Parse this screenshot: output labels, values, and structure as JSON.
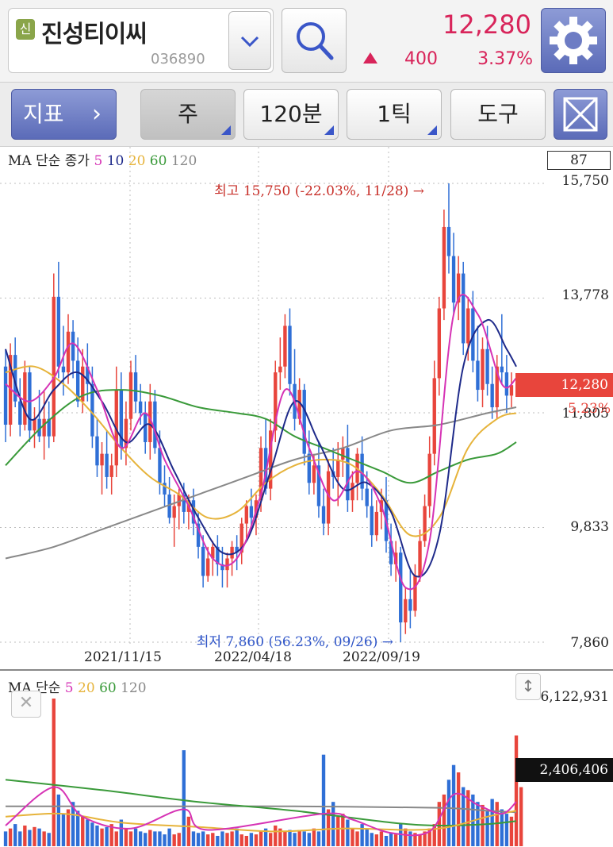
{
  "header": {
    "badge": "신",
    "stock_name": "진성티이씨",
    "stock_code": "036890",
    "price": "12,280",
    "change_amount": "400",
    "change_percent": "3.37%",
    "accent_color": "#d8245a"
  },
  "toolbar": {
    "indicator_label": "지표",
    "indicator_chevron": "›",
    "period_label": "주",
    "interval_label": "120분",
    "tick_label": "1틱",
    "tools_label": "도구"
  },
  "chart_data": [
    {
      "type": "candlestick",
      "legend_prefix": "MA 단순 종가",
      "ma_periods": [
        "5",
        "10",
        "20",
        "60",
        "120"
      ],
      "ma_colors": [
        "#d633b5",
        "#1e2a8a",
        "#e6b33a",
        "#3a9a3a",
        "#888888"
      ],
      "y_ticks": [
        "15,750",
        "13,778",
        "11,805",
        "9,833",
        "7,860"
      ],
      "ylim": [
        7860,
        15750
      ],
      "x_ticks": [
        "2021/11/15",
        "2022/04/18",
        "2022/09/19"
      ],
      "counter": "87",
      "current_price": "12,280",
      "current_change_pct": "5.23%",
      "high_annotation": "최고 15,750 (-22.03%, 11/28) →",
      "low_annotation": "최저 7,860 (56.23%, 09/26) →",
      "up_color": "#e8453c",
      "down_color": "#2f6fd6",
      "candles": [
        [
          12600,
          12900,
          11300,
          11600
        ],
        [
          11600,
          13000,
          11400,
          12800
        ],
        [
          12800,
          13100,
          11900,
          12000
        ],
        [
          12000,
          12400,
          11400,
          11600
        ],
        [
          11600,
          12700,
          11500,
          12500
        ],
        [
          12500,
          12600,
          11300,
          11500
        ],
        [
          11500,
          11900,
          11200,
          11700
        ],
        [
          11700,
          12200,
          11300,
          11400
        ],
        [
          11400,
          12200,
          11000,
          11700
        ],
        [
          11700,
          12000,
          11200,
          11400
        ],
        [
          11400,
          14200,
          11300,
          13800
        ],
        [
          13800,
          14400,
          12400,
          12600
        ],
        [
          12600,
          13300,
          12100,
          12500
        ],
        [
          12500,
          13500,
          12300,
          13200
        ],
        [
          13200,
          13400,
          12400,
          12700
        ],
        [
          12700,
          13100,
          11900,
          12000
        ],
        [
          12000,
          12900,
          11800,
          12600
        ],
        [
          12600,
          13000,
          12000,
          12300
        ],
        [
          12300,
          12600,
          11200,
          11400
        ],
        [
          11400,
          11700,
          10700,
          10900
        ],
        [
          10900,
          11300,
          10400,
          11100
        ],
        [
          11100,
          11500,
          10500,
          10700
        ],
        [
          10700,
          11100,
          10400,
          10900
        ],
        [
          10900,
          12600,
          10700,
          12200
        ],
        [
          12200,
          12500,
          11000,
          11200
        ],
        [
          11200,
          12000,
          10900,
          11700
        ],
        [
          11700,
          12700,
          11500,
          12500
        ],
        [
          12500,
          12800,
          11800,
          12000
        ],
        [
          12000,
          12300,
          11600,
          11800
        ],
        [
          11800,
          12000,
          11100,
          11300
        ],
        [
          11300,
          12300,
          11000,
          12000
        ],
        [
          12000,
          12200,
          11100,
          11200
        ],
        [
          11200,
          11500,
          10400,
          10600
        ],
        [
          10600,
          10900,
          10200,
          10400
        ],
        [
          10400,
          10700,
          9900,
          10000
        ],
        [
          10000,
          10400,
          9500,
          10200
        ],
        [
          10200,
          10500,
          9800,
          10400
        ],
        [
          10400,
          10600,
          9900,
          10100
        ],
        [
          10100,
          10400,
          9800,
          10300
        ],
        [
          10300,
          10500,
          9700,
          9900
        ],
        [
          9900,
          10100,
          9300,
          9500
        ],
        [
          9500,
          9700,
          8800,
          9000
        ],
        [
          9000,
          9500,
          8900,
          9300
        ],
        [
          9300,
          9600,
          9000,
          9500
        ],
        [
          9500,
          9700,
          9000,
          9200
        ],
        [
          9200,
          9500,
          8800,
          9100
        ],
        [
          9100,
          9400,
          8800,
          9300
        ],
        [
          9300,
          9600,
          9000,
          9500
        ],
        [
          9500,
          9700,
          9100,
          9400
        ],
        [
          9400,
          10000,
          9200,
          9900
        ],
        [
          9900,
          10300,
          9600,
          10200
        ],
        [
          10200,
          10500,
          9800,
          10000
        ],
        [
          10000,
          10400,
          9700,
          10300
        ],
        [
          10300,
          11400,
          10100,
          11200
        ],
        [
          11200,
          11700,
          10400,
          10500
        ],
        [
          10500,
          11700,
          10300,
          11500
        ],
        [
          11500,
          12700,
          11300,
          12500
        ],
        [
          12500,
          13100,
          12200,
          12600
        ],
        [
          12600,
          13500,
          12400,
          13300
        ],
        [
          13300,
          13600,
          12100,
          12300
        ],
        [
          12300,
          12900,
          11500,
          11700
        ],
        [
          11700,
          12400,
          11600,
          12200
        ],
        [
          12200,
          12300,
          10900,
          11100
        ],
        [
          11100,
          11500,
          10400,
          10600
        ],
        [
          10600,
          11100,
          10400,
          10900
        ],
        [
          10900,
          11300,
          10000,
          10200
        ],
        [
          10200,
          10500,
          9700,
          9900
        ],
        [
          9900,
          11000,
          9700,
          10800
        ],
        [
          10800,
          11200,
          10500,
          10700
        ],
        [
          10700,
          11300,
          10200,
          11000
        ],
        [
          11000,
          11400,
          10700,
          11200
        ],
        [
          11200,
          11600,
          10100,
          10300
        ],
        [
          10300,
          10800,
          10100,
          10600
        ],
        [
          10600,
          11200,
          10300,
          11100
        ],
        [
          11100,
          11400,
          10300,
          10500
        ],
        [
          10500,
          10800,
          10000,
          10200
        ],
        [
          10200,
          10500,
          9500,
          9700
        ],
        [
          9700,
          10300,
          9600,
          10100
        ],
        [
          10100,
          10500,
          9800,
          10300
        ],
        [
          10300,
          10700,
          9400,
          9600
        ],
        [
          9600,
          9900,
          9000,
          9200
        ],
        [
          9200,
          9600,
          8900,
          9400
        ],
        [
          9400,
          9500,
          7860,
          8200
        ],
        [
          8200,
          8800,
          8000,
          8600
        ],
        [
          8600,
          9100,
          8100,
          8400
        ],
        [
          8400,
          9200,
          8300,
          9000
        ],
        [
          9000,
          9800,
          8900,
          9600
        ],
        [
          9600,
          10400,
          9500,
          10200
        ],
        [
          10200,
          11400,
          10000,
          11100
        ],
        [
          11100,
          12700,
          10900,
          12400
        ],
        [
          12400,
          13800,
          12100,
          13600
        ],
        [
          13600,
          15300,
          13400,
          15000
        ],
        [
          15000,
          15750,
          14200,
          14500
        ],
        [
          14500,
          14900,
          13500,
          13700
        ],
        [
          13700,
          14500,
          13400,
          14200
        ],
        [
          14200,
          14400,
          12800,
          13000
        ],
        [
          13000,
          13800,
          12700,
          13600
        ],
        [
          13600,
          13900,
          12500,
          12700
        ],
        [
          12700,
          13300,
          12000,
          12200
        ],
        [
          12200,
          13100,
          11900,
          12900
        ],
        [
          12900,
          13300,
          12100,
          12300
        ],
        [
          12300,
          12600,
          11700,
          11900
        ],
        [
          11900,
          12800,
          11700,
          12600
        ],
        [
          12600,
          13500,
          12300,
          12500
        ],
        [
          12500,
          12800,
          11800,
          12100
        ],
        [
          12100,
          12500,
          11900,
          12280
        ]
      ],
      "ma5": [
        [
          0,
          12300
        ],
        [
          5,
          12000
        ],
        [
          10,
          12400
        ],
        [
          14,
          13000
        ],
        [
          19,
          12200
        ],
        [
          24,
          11200
        ],
        [
          29,
          11800
        ],
        [
          33,
          11000
        ],
        [
          38,
          10200
        ],
        [
          43,
          9300
        ],
        [
          48,
          9300
        ],
        [
          53,
          10400
        ],
        [
          58,
          12200
        ],
        [
          63,
          11200
        ],
        [
          68,
          10300
        ],
        [
          73,
          10800
        ],
        [
          78,
          10200
        ],
        [
          83,
          8800
        ],
        [
          88,
          9600
        ],
        [
          93,
          13500
        ],
        [
          98,
          13500
        ],
        [
          103,
          12300
        ],
        [
          106,
          12400
        ]
      ],
      "ma10": [
        [
          0,
          12900
        ],
        [
          5,
          11700
        ],
        [
          10,
          12200
        ],
        [
          15,
          12500
        ],
        [
          20,
          12000
        ],
        [
          25,
          11300
        ],
        [
          30,
          11600
        ],
        [
          35,
          10800
        ],
        [
          40,
          10000
        ],
        [
          45,
          9400
        ],
        [
          50,
          9600
        ],
        [
          55,
          10800
        ],
        [
          60,
          12000
        ],
        [
          65,
          11300
        ],
        [
          70,
          10500
        ],
        [
          75,
          10600
        ],
        [
          80,
          10100
        ],
        [
          85,
          9000
        ],
        [
          90,
          9700
        ],
        [
          95,
          12600
        ],
        [
          100,
          13400
        ],
        [
          104,
          12900
        ],
        [
          106,
          12600
        ]
      ],
      "ma20": [
        [
          0,
          12500
        ],
        [
          6,
          12600
        ],
        [
          12,
          12300
        ],
        [
          18,
          11800
        ],
        [
          24,
          11200
        ],
        [
          30,
          10700
        ],
        [
          36,
          10400
        ],
        [
          42,
          10000
        ],
        [
          48,
          10100
        ],
        [
          54,
          10600
        ],
        [
          60,
          10900
        ],
        [
          66,
          11000
        ],
        [
          72,
          10900
        ],
        [
          78,
          10400
        ],
        [
          84,
          9700
        ],
        [
          90,
          10000
        ],
        [
          96,
          11200
        ],
        [
          102,
          11700
        ],
        [
          106,
          11800
        ]
      ],
      "ma60": [
        [
          0,
          10900
        ],
        [
          8,
          11600
        ],
        [
          16,
          12100
        ],
        [
          24,
          12200
        ],
        [
          32,
          12100
        ],
        [
          40,
          11900
        ],
        [
          48,
          11800
        ],
        [
          54,
          11700
        ],
        [
          60,
          11400
        ],
        [
          66,
          11200
        ],
        [
          72,
          11000
        ],
        [
          78,
          10800
        ],
        [
          84,
          10600
        ],
        [
          90,
          10800
        ],
        [
          96,
          11000
        ],
        [
          102,
          11100
        ],
        [
          106,
          11300
        ]
      ],
      "ma120": [
        [
          0,
          9300
        ],
        [
          10,
          9500
        ],
        [
          20,
          9800
        ],
        [
          30,
          10100
        ],
        [
          40,
          10400
        ],
        [
          50,
          10700
        ],
        [
          60,
          11000
        ],
        [
          70,
          11200
        ],
        [
          80,
          11500
        ],
        [
          90,
          11600
        ],
        [
          100,
          11800
        ],
        [
          106,
          11900
        ]
      ]
    },
    {
      "type": "bar",
      "legend_prefix": "MA 단순",
      "ma_periods": [
        "5",
        "20",
        "60",
        "120"
      ],
      "ma_colors": [
        "#d633b5",
        "#e6b33a",
        "#3a9a3a",
        "#888888"
      ],
      "y_ticks": [
        "6,122,931"
      ],
      "current_volume": "2,406,406",
      "ylim": [
        0,
        6122931
      ],
      "volume_scale": 6122931,
      "volumes": [
        0.1,
        0.12,
        0.15,
        0.1,
        0.14,
        0.11,
        0.13,
        0.12,
        0.1,
        0.09,
        1.0,
        0.35,
        0.22,
        0.25,
        0.3,
        0.24,
        0.2,
        0.18,
        0.16,
        0.14,
        0.12,
        0.13,
        0.15,
        0.1,
        0.18,
        0.12,
        0.1,
        0.12,
        0.1,
        0.09,
        0.11,
        0.1,
        0.1,
        0.08,
        0.12,
        0.08,
        0.09,
        0.65,
        0.2,
        0.1,
        0.09,
        0.1,
        0.08,
        0.09,
        0.07,
        0.1,
        0.09,
        0.1,
        0.12,
        0.08,
        0.07,
        0.09,
        0.08,
        0.1,
        0.12,
        0.09,
        0.14,
        0.12,
        0.1,
        0.11,
        0.09,
        0.11,
        0.1,
        0.09,
        0.12,
        0.1,
        0.62,
        0.25,
        0.3,
        0.2,
        0.22,
        0.18,
        0.12,
        0.1,
        0.15,
        0.12,
        0.09,
        0.08,
        0.1,
        0.07,
        0.09,
        0.08,
        0.15,
        0.12,
        0.1,
        0.09,
        0.08,
        0.1,
        0.12,
        0.15,
        0.3,
        0.35,
        0.45,
        0.55,
        0.5,
        0.4,
        0.38,
        0.35,
        0.3,
        0.28,
        0.24,
        0.32,
        0.3,
        0.25,
        0.22,
        0.2,
        0.75,
        0.4
      ],
      "vol_ma5": [
        [
          0,
          0.14
        ],
        [
          10,
          0.4
        ],
        [
          16,
          0.2
        ],
        [
          26,
          0.12
        ],
        [
          37,
          0.25
        ],
        [
          42,
          0.11
        ],
        [
          66,
          0.22
        ],
        [
          72,
          0.18
        ],
        [
          80,
          0.09
        ],
        [
          88,
          0.1
        ],
        [
          93,
          0.35
        ],
        [
          98,
          0.28
        ],
        [
          103,
          0.22
        ],
        [
          106,
          0.3
        ]
      ],
      "vol_ma20": [
        [
          0,
          0.2
        ],
        [
          12,
          0.22
        ],
        [
          24,
          0.16
        ],
        [
          40,
          0.13
        ],
        [
          56,
          0.1
        ],
        [
          70,
          0.12
        ],
        [
          84,
          0.11
        ],
        [
          92,
          0.13
        ],
        [
          100,
          0.2
        ],
        [
          106,
          0.24
        ]
      ],
      "vol_ma60": [
        [
          0,
          0.45
        ],
        [
          20,
          0.38
        ],
        [
          40,
          0.3
        ],
        [
          60,
          0.24
        ],
        [
          80,
          0.16
        ],
        [
          90,
          0.14
        ],
        [
          100,
          0.15
        ],
        [
          106,
          0.17
        ]
      ],
      "vol_ma120": [
        [
          0,
          0.27
        ],
        [
          30,
          0.27
        ],
        [
          60,
          0.27
        ],
        [
          90,
          0.26
        ],
        [
          100,
          0.24
        ],
        [
          106,
          0.23
        ]
      ]
    }
  ]
}
